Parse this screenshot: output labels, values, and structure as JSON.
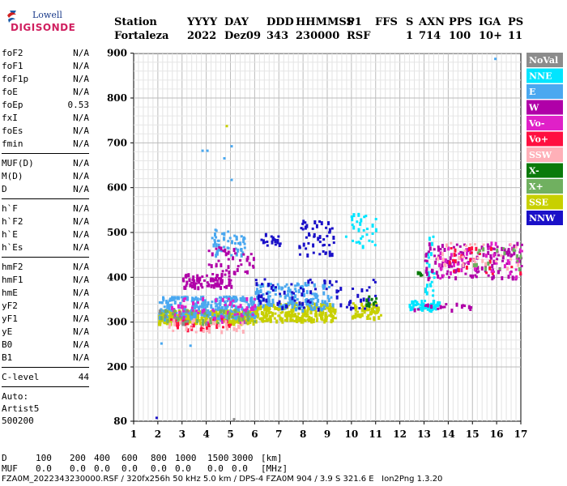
{
  "logo": {
    "line1": "Lowell",
    "line2": "DIGISONDE"
  },
  "header": {
    "labels": {
      "station": "Station",
      "yyyy": "YYYY",
      "day": "DAY",
      "ddd": "DDD",
      "hhmmss": "HHMMSS",
      "p1": "P1",
      "ffs": "FFS",
      "s": "S",
      "axn": "AXN",
      "pps": "PPS",
      "iga": "IGA",
      "ps": "PS"
    },
    "values": {
      "station": "Fortaleza",
      "yyyy": "2022",
      "day": "Dez09",
      "ddd": "343",
      "hhmmss": "230000",
      "p1": "RSF",
      "ffs": "",
      "s": "1",
      "axn": "714",
      "pps": "100",
      "iga": "10+",
      "ps": "11"
    }
  },
  "params": {
    "group1": [
      [
        "foF2",
        "N/A"
      ],
      [
        "foF1",
        "N/A"
      ],
      [
        "foF1p",
        "N/A"
      ],
      [
        "foE",
        "N/A"
      ],
      [
        "foEp",
        "0.53"
      ],
      [
        "fxI",
        "N/A"
      ],
      [
        "foEs",
        "N/A"
      ],
      [
        "fmin",
        "N/A"
      ]
    ],
    "group2": [
      [
        "MUF(D)",
        "N/A"
      ],
      [
        "M(D)",
        "N/A"
      ],
      [
        "D",
        "N/A"
      ]
    ],
    "group3": [
      [
        "h`F",
        "N/A"
      ],
      [
        "h`F2",
        "N/A"
      ],
      [
        "h`E",
        "N/A"
      ],
      [
        "h`Es",
        "N/A"
      ]
    ],
    "group4": [
      [
        "hmF2",
        "N/A"
      ],
      [
        "hmF1",
        "N/A"
      ],
      [
        "hmE",
        "N/A"
      ],
      [
        "yF2",
        "N/A"
      ],
      [
        "yF1",
        "N/A"
      ],
      [
        "yE",
        "N/A"
      ],
      [
        "B0",
        "N/A"
      ],
      [
        "B1",
        "N/A"
      ]
    ],
    "clevel": [
      "C-level",
      "44"
    ],
    "auto": [
      "Auto:",
      "Artist5",
      "500200"
    ]
  },
  "chart_data": {
    "type": "scatter",
    "xlim": [
      1,
      17
    ],
    "ylim": [
      80,
      900
    ],
    "x_ticks": [
      "1",
      "2",
      "3",
      "4",
      "5",
      "6",
      "7",
      "8",
      "9",
      "10",
      "11",
      "12",
      "13",
      "14",
      "15",
      "16",
      "17"
    ],
    "y_ticks": [
      "900",
      "800",
      "700",
      "600",
      "500",
      "400",
      "300",
      "200",
      "80"
    ],
    "grid": true,
    "legend_position": "right",
    "legend": [
      {
        "name": "NoVal",
        "color": "#8c8c8c"
      },
      {
        "name": "NNE",
        "color": "#00e5ff"
      },
      {
        "name": "E",
        "color": "#4aa8f0"
      },
      {
        "name": "W",
        "color": "#b000a8"
      },
      {
        "name": "Vo-",
        "color": "#e020c8"
      },
      {
        "name": "Vo+",
        "color": "#ff1040"
      },
      {
        "name": "SSW",
        "color": "#ffb0b8"
      },
      {
        "name": "X-",
        "color": "#0a7a0a"
      },
      {
        "name": "X+",
        "color": "#70b060"
      },
      {
        "name": "SSE",
        "color": "#c8d000"
      },
      {
        "name": "NNW",
        "color": "#1a10c8"
      }
    ],
    "clusters": [
      {
        "color": "#c8d000",
        "x": [
          2.0,
          6.0
        ],
        "y": [
          300,
          330
        ],
        "n": 380
      },
      {
        "color": "#c8d000",
        "x": [
          6.0,
          9.3
        ],
        "y": [
          305,
          345
        ],
        "n": 250
      },
      {
        "color": "#c8d000",
        "x": [
          10.0,
          11.2
        ],
        "y": [
          310,
          345
        ],
        "n": 60
      },
      {
        "color": "#4aa8f0",
        "x": [
          2.0,
          6.0
        ],
        "y": [
          310,
          360
        ],
        "n": 260
      },
      {
        "color": "#4aa8f0",
        "x": [
          6.0,
          9.2
        ],
        "y": [
          330,
          390
        ],
        "n": 140
      },
      {
        "color": "#4aa8f0",
        "x": [
          4.2,
          5.6
        ],
        "y": [
          450,
          510
        ],
        "n": 50
      },
      {
        "color": "#00e5ff",
        "x": [
          12.3,
          13.6
        ],
        "y": [
          330,
          350
        ],
        "n": 60
      },
      {
        "color": "#00e5ff",
        "x": [
          9.7,
          11.0
        ],
        "y": [
          470,
          545
        ],
        "n": 30
      },
      {
        "color": "#00e5ff",
        "x": [
          13.0,
          13.4
        ],
        "y": [
          360,
          500
        ],
        "n": 25
      },
      {
        "color": "#b000a8",
        "x": [
          3.0,
          5.0
        ],
        "y": [
          380,
          410
        ],
        "n": 80
      },
      {
        "color": "#b000a8",
        "x": [
          13.0,
          17.0
        ],
        "y": [
          400,
          480
        ],
        "n": 130
      },
      {
        "color": "#b000a8",
        "x": [
          4.0,
          6.0
        ],
        "y": [
          410,
          470
        ],
        "n": 40
      },
      {
        "color": "#b000a8",
        "x": [
          12.5,
          15.0
        ],
        "y": [
          330,
          345
        ],
        "n": 20
      },
      {
        "color": "#1a10c8",
        "x": [
          6.0,
          11.0
        ],
        "y": [
          330,
          400
        ],
        "n": 80
      },
      {
        "color": "#1a10c8",
        "x": [
          7.8,
          9.3
        ],
        "y": [
          450,
          530
        ],
        "n": 50
      },
      {
        "color": "#1a10c8",
        "x": [
          6.2,
          7.2
        ],
        "y": [
          470,
          500
        ],
        "n": 20
      },
      {
        "color": "#e020c8",
        "x": [
          2.5,
          6.0
        ],
        "y": [
          300,
          360
        ],
        "n": 70
      },
      {
        "color": "#e020c8",
        "x": [
          13.5,
          17.0
        ],
        "y": [
          400,
          480
        ],
        "n": 50
      },
      {
        "color": "#ff1040",
        "x": [
          2.5,
          5.0
        ],
        "y": [
          285,
          310
        ],
        "n": 30
      },
      {
        "color": "#ff1040",
        "x": [
          14.0,
          17.0
        ],
        "y": [
          410,
          470
        ],
        "n": 25
      },
      {
        "color": "#ffb0b8",
        "x": [
          2.3,
          5.5
        ],
        "y": [
          280,
          310
        ],
        "n": 40
      },
      {
        "color": "#ffb0b8",
        "x": [
          13.5,
          17.0
        ],
        "y": [
          420,
          480
        ],
        "n": 30
      },
      {
        "color": "#0a7a0a",
        "x": [
          10.3,
          11.0
        ],
        "y": [
          340,
          360
        ],
        "n": 10
      },
      {
        "color": "#0a7a0a",
        "x": [
          12.6,
          13.0
        ],
        "y": [
          405,
          415
        ],
        "n": 5
      },
      {
        "color": "#70b060",
        "x": [
          2.0,
          6.0
        ],
        "y": [
          300,
          330
        ],
        "n": 40
      },
      {
        "color": "#70b060",
        "x": [
          15.0,
          17.0
        ],
        "y": [
          420,
          470
        ],
        "n": 20
      },
      {
        "color": "#8c8c8c",
        "x": [
          2.0,
          6.0
        ],
        "y": [
          300,
          330
        ],
        "n": 10
      }
    ],
    "points": [
      {
        "x": 1.9,
        "y": 90,
        "color": "#1a10c8"
      },
      {
        "x": 15.9,
        "y": 890,
        "color": "#4aa8f0"
      },
      {
        "x": 4.8,
        "y": 740,
        "color": "#c8d000"
      },
      {
        "x": 3.8,
        "y": 685,
        "color": "#4aa8f0"
      },
      {
        "x": 4.0,
        "y": 685,
        "color": "#4aa8f0"
      },
      {
        "x": 5.0,
        "y": 695,
        "color": "#4aa8f0"
      },
      {
        "x": 4.7,
        "y": 668,
        "color": "#4aa8f0"
      },
      {
        "x": 5.0,
        "y": 620,
        "color": "#4aa8f0"
      },
      {
        "x": 5.1,
        "y": 87,
        "color": "#8c8c8c"
      },
      {
        "x": 2.1,
        "y": 255,
        "color": "#4aa8f0"
      },
      {
        "x": 3.3,
        "y": 250,
        "color": "#4aa8f0"
      }
    ]
  },
  "bottom": {
    "d_label": "D",
    "muf_label": "MUF",
    "d_values": [
      "100",
      "200",
      "400",
      "600",
      "800",
      "1000",
      "1500",
      "3000",
      "[km]"
    ],
    "muf_values": [
      "0.0",
      "0.0",
      "0.0",
      "0.0",
      "0.0",
      "0.0",
      "0.0",
      "0.0",
      "[MHz]"
    ]
  },
  "footer": {
    "text": "FZA0M_2022343230000.RSF / 320fx256h 50 kHz 5.0 km / DPS-4 FZA0M 904 / 3.9 S 321.6 E   Ion2Png 1.3.20"
  }
}
